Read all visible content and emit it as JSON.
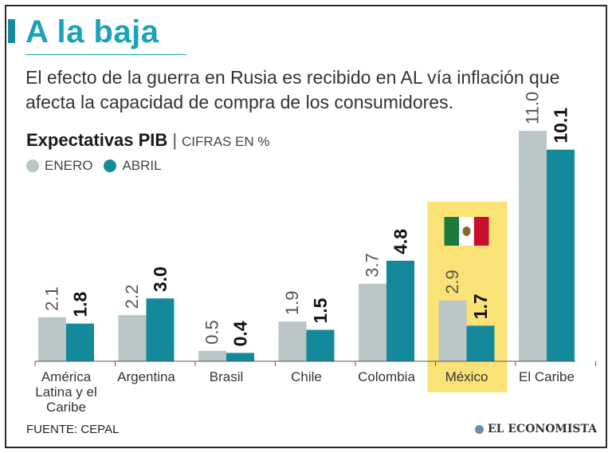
{
  "header": {
    "title": "A la baja",
    "subtitle": "El efecto de la guerra en Rusia es recibido en AL vía inflación que afecta la capacidad de compra de los consumidores."
  },
  "chart_header": {
    "title": "Expectativas PIB",
    "separator": "|",
    "units": "CIFRAS EN %"
  },
  "legend": [
    {
      "label": "ENERO",
      "color": "#b9c5c6"
    },
    {
      "label": "ABRIL",
      "color": "#15899c"
    }
  ],
  "footer": {
    "source": "FUENTE: CEPAL",
    "brand": "EL ECONOMISTA"
  },
  "highlight": {
    "category": "México",
    "color": "#fbe276",
    "flag_colors": [
      "#1b7a3e",
      "#ffffff",
      "#c8102e"
    ]
  },
  "chart_data": {
    "type": "bar",
    "title": "Expectativas PIB",
    "ylabel": "CIFRAS EN %",
    "xlabel": "",
    "categories": [
      "América Latina y el Caribe",
      "Argentina",
      "Brasil",
      "Chile",
      "Colombia",
      "México",
      "El Caribe"
    ],
    "category_lines": [
      [
        "América",
        "Latina y el",
        "Caribe"
      ],
      [
        "Argentina"
      ],
      [
        "Brasil"
      ],
      [
        "Chile"
      ],
      [
        "Colombia"
      ],
      [
        "México"
      ],
      [
        "El Caribe"
      ]
    ],
    "series": [
      {
        "name": "ENERO",
        "values": [
          2.1,
          2.2,
          0.5,
          1.9,
          3.7,
          2.9,
          11.0
        ],
        "labels": [
          "2.1",
          "2.2",
          "0.5",
          "1.9",
          "3.7",
          "2.9",
          "11.0"
        ],
        "color": "#b9c5c6"
      },
      {
        "name": "ABRIL",
        "values": [
          1.8,
          3.0,
          0.4,
          1.5,
          4.8,
          1.7,
          10.1
        ],
        "labels": [
          "1.8",
          "3.0",
          "0.4",
          "1.5",
          "4.8",
          "1.7",
          "10.1"
        ],
        "color": "#15899c"
      }
    ],
    "ylim": [
      0,
      11.0
    ],
    "grid": false
  }
}
